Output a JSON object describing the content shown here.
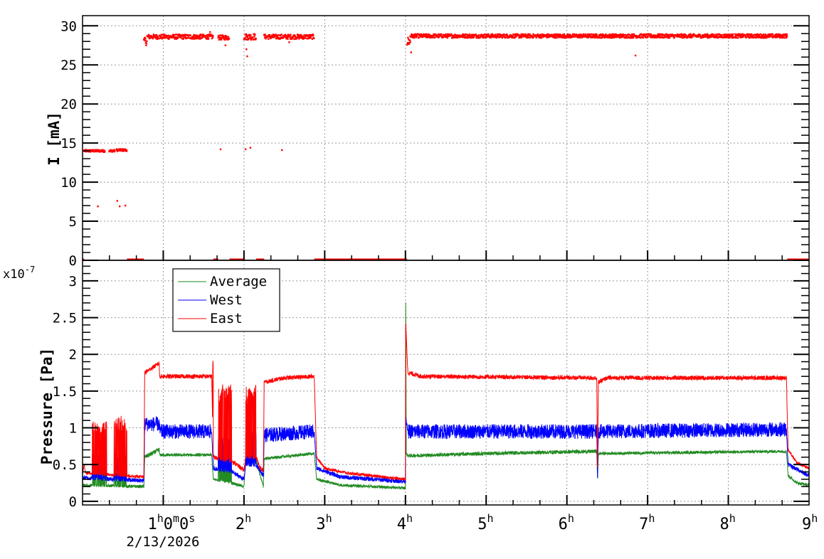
{
  "chart_data": [
    {
      "type": "scatter",
      "title": "",
      "ylabel": "I [mA]",
      "xlabel": "",
      "xlim_hours": [
        0,
        9
      ],
      "ylim": [
        0,
        31.3
      ],
      "yticks": [
        "0",
        "5",
        "10",
        "15",
        "20",
        "25",
        "30"
      ],
      "grid": true,
      "color": "#ff0000",
      "series": [
        {
          "name": "Beam current",
          "segments": [
            {
              "t0": 0.0,
              "t1": 0.02,
              "level": 0,
              "noise": 0
            },
            {
              "t0": 0.02,
              "t1": 0.28,
              "level": 14,
              "noise": 0.15
            },
            {
              "t0": 0.33,
              "t1": 0.4,
              "level": 14,
              "noise": 0.15
            },
            {
              "t0": 0.42,
              "t1": 0.55,
              "level": 14.1,
              "noise": 0.15
            },
            {
              "t0": 0.55,
              "t1": 0.76,
              "level": 0,
              "noise": 0
            },
            {
              "t0": 0.76,
              "t1": 0.8,
              "level": 28,
              "noise": 0.5
            },
            {
              "t0": 0.8,
              "t1": 1.62,
              "level": 28.6,
              "noise": 0.3
            },
            {
              "t0": 1.62,
              "t1": 1.68,
              "level": 0,
              "noise": 0
            },
            {
              "t0": 1.68,
              "t1": 1.82,
              "level": 28.5,
              "noise": 0.3
            },
            {
              "t0": 1.82,
              "t1": 2.0,
              "level": 0,
              "noise": 0
            },
            {
              "t0": 2.0,
              "t1": 2.15,
              "level": 28.6,
              "noise": 0.4
            },
            {
              "t0": 2.15,
              "t1": 2.25,
              "level": 0,
              "noise": 0
            },
            {
              "t0": 2.25,
              "t1": 2.87,
              "level": 28.6,
              "noise": 0.3
            },
            {
              "t0": 2.87,
              "t1": 4.02,
              "level": 0,
              "noise": 0
            },
            {
              "t0": 4.02,
              "t1": 4.06,
              "level": 28,
              "noise": 0.6
            },
            {
              "t0": 4.06,
              "t1": 8.73,
              "level": 28.7,
              "noise": 0.25
            },
            {
              "t0": 8.73,
              "t1": 9.0,
              "level": 0,
              "noise": 0
            }
          ],
          "outliers": [
            [
              0.19,
              6.9
            ],
            [
              0.43,
              7.6
            ],
            [
              0.46,
              6.9
            ],
            [
              0.53,
              7.0
            ],
            [
              1.71,
              14.2
            ],
            [
              2.02,
              14.2
            ],
            [
              2.08,
              14.4
            ],
            [
              2.47,
              14.1
            ],
            [
              2.04,
              26.1
            ],
            [
              2.03,
              27.0
            ],
            [
              1.77,
              27.5
            ],
            [
              4.07,
              26.6
            ],
            [
              6.85,
              26.2
            ],
            [
              1.58,
              29.2
            ],
            [
              2.56,
              27.9
            ]
          ]
        }
      ]
    },
    {
      "type": "line",
      "title": "",
      "ylabel": "Pressure [Pa]",
      "y_multiplier": "x10",
      "y_exponent": "-7",
      "xlabel": "2/13/2026",
      "xlim_hours": [
        0,
        9
      ],
      "ylim": [
        -0.05,
        3.28
      ],
      "xtick_labels": [
        {
          "h": 1,
          "base": "1",
          "parts": [
            [
              "h",
              "0"
            ],
            [
              "m",
              "0"
            ],
            [
              "s",
              ""
            ]
          ]
        },
        {
          "h": 2,
          "base": "2",
          "sup": "h"
        },
        {
          "h": 3,
          "base": "3",
          "sup": "h"
        },
        {
          "h": 4,
          "base": "4",
          "sup": "h"
        },
        {
          "h": 5,
          "base": "5",
          "sup": "h"
        },
        {
          "h": 6,
          "base": "6",
          "sup": "h"
        },
        {
          "h": 7,
          "base": "7",
          "sup": "h"
        },
        {
          "h": 8,
          "base": "8",
          "sup": "h"
        },
        {
          "h": 9,
          "base": "9",
          "sup": "h"
        }
      ],
      "yticks": [
        "0",
        "0.5",
        "1",
        "1.5",
        "2",
        "2.5",
        "3"
      ],
      "grid": true,
      "legend": {
        "placement": "top-left",
        "entries": [
          "Average",
          "West",
          "East"
        ]
      },
      "series": [
        {
          "name": "Average",
          "color": "#228b22",
          "noise_default": 0.02,
          "noise": [
            [
              0.77,
              0.955,
              0.03
            ],
            [
              4.03,
              6.37,
              0.025
            ]
          ],
          "bursts": [
            [
              1.68,
              1.85,
              0.55
            ],
            [
              2.02,
              2.15,
              0.6
            ],
            [
              0.12,
              0.3,
              0.38
            ],
            [
              0.39,
              0.55,
              0.38
            ]
          ],
          "points": [
            [
              0,
              0.22
            ],
            [
              0.76,
              0.2
            ],
            [
              0.77,
              0.6
            ],
            [
              0.95,
              0.7
            ],
            [
              0.955,
              0.63
            ],
            [
              1.6,
              0.63
            ],
            [
              1.62,
              0.3
            ],
            [
              1.85,
              0.25
            ],
            [
              2.0,
              0.2
            ],
            [
              2.02,
              0.55
            ],
            [
              2.15,
              0.55
            ],
            [
              2.24,
              0.2
            ],
            [
              2.25,
              0.58
            ],
            [
              2.87,
              0.65
            ],
            [
              2.9,
              0.3
            ],
            [
              3.2,
              0.22
            ],
            [
              4.0,
              0.18
            ],
            [
              4.003,
              3.05
            ],
            [
              4.01,
              0.65
            ],
            [
              4.03,
              0.62
            ],
            [
              5.0,
              0.65
            ],
            [
              6.37,
              0.68
            ],
            [
              6.38,
              0.3
            ],
            [
              6.39,
              0.65
            ],
            [
              8.72,
              0.68
            ],
            [
              8.74,
              0.35
            ],
            [
              8.85,
              0.25
            ],
            [
              9,
              0.22
            ]
          ]
        },
        {
          "name": "West",
          "color": "#0000ff",
          "noise_default": 0.03,
          "noise": [
            [
              0.77,
              1.6,
              0.1
            ],
            [
              2.25,
              2.87,
              0.1
            ],
            [
              4.03,
              6.37,
              0.1
            ],
            [
              6.39,
              8.72,
              0.1
            ]
          ],
          "bursts": [
            [
              0.12,
              0.3,
              0.6
            ],
            [
              0.39,
              0.55,
              0.6
            ],
            [
              1.68,
              1.85,
              0.8
            ],
            [
              2.02,
              2.15,
              0.9
            ]
          ],
          "points": [
            [
              0,
              0.32
            ],
            [
              0.76,
              0.28
            ],
            [
              0.77,
              1.05
            ],
            [
              0.95,
              1.05
            ],
            [
              0.955,
              0.95
            ],
            [
              1.6,
              0.95
            ],
            [
              1.62,
              0.45
            ],
            [
              1.85,
              0.4
            ],
            [
              2.0,
              0.3
            ],
            [
              2.02,
              0.5
            ],
            [
              2.15,
              0.5
            ],
            [
              2.24,
              0.35
            ],
            [
              2.25,
              0.9
            ],
            [
              2.87,
              0.95
            ],
            [
              2.9,
              0.45
            ],
            [
              3.2,
              0.33
            ],
            [
              4.0,
              0.27
            ],
            [
              4.005,
              1.15
            ],
            [
              4.03,
              0.95
            ],
            [
              6.37,
              0.95
            ],
            [
              6.38,
              0.35
            ],
            [
              6.39,
              0.95
            ],
            [
              8.72,
              0.98
            ],
            [
              8.74,
              0.5
            ],
            [
              9,
              0.35
            ]
          ]
        },
        {
          "name": "East",
          "color": "#ff0000",
          "noise_default": 0.02,
          "noise": [
            [
              0.77,
              2.87,
              0.03
            ],
            [
              4.03,
              8.72,
              0.03
            ]
          ],
          "bursts": [
            [
              0.12,
              0.3,
              1.0
            ],
            [
              0.39,
              0.55,
              1.05
            ],
            [
              1.6,
              1.62,
              1.8
            ],
            [
              1.68,
              1.85,
              1.45
            ],
            [
              2.02,
              2.15,
              1.45
            ]
          ],
          "points": [
            [
              0,
              0.38
            ],
            [
              0.02,
              0.5
            ],
            [
              0.04,
              0.38
            ],
            [
              0.76,
              0.33
            ],
            [
              0.77,
              1.75
            ],
            [
              0.95,
              1.88
            ],
            [
              0.955,
              1.7
            ],
            [
              1.6,
              1.7
            ],
            [
              1.62,
              0.6
            ],
            [
              1.85,
              0.55
            ],
            [
              2.0,
              0.42
            ],
            [
              2.02,
              0.6
            ],
            [
              2.15,
              0.6
            ],
            [
              2.2,
              0.45
            ],
            [
              2.24,
              0.42
            ],
            [
              2.25,
              1.62
            ],
            [
              2.5,
              1.68
            ],
            [
              2.87,
              1.7
            ],
            [
              2.9,
              0.6
            ],
            [
              3.0,
              0.45
            ],
            [
              3.3,
              0.38
            ],
            [
              4.0,
              0.3
            ],
            [
              4.003,
              2.45
            ],
            [
              4.03,
              1.75
            ],
            [
              4.2,
              1.7
            ],
            [
              6.37,
              1.68
            ],
            [
              6.38,
              0.45
            ],
            [
              6.39,
              1.62
            ],
            [
              6.5,
              1.68
            ],
            [
              8.72,
              1.68
            ],
            [
              8.74,
              0.7
            ],
            [
              8.85,
              0.52
            ],
            [
              9,
              0.45
            ]
          ]
        }
      ]
    }
  ]
}
